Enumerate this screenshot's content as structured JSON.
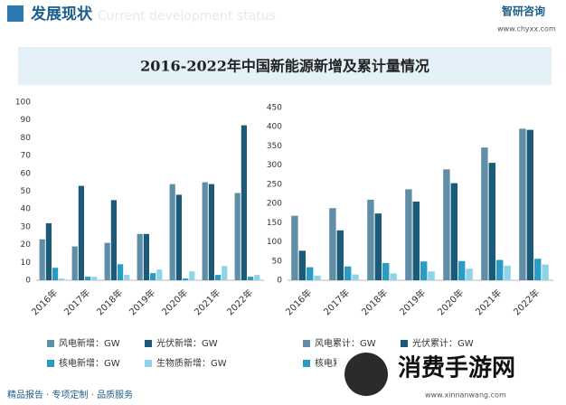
{
  "header": {
    "title": "发展现状",
    "subtitle": "Current development status",
    "logo": "智研咨询",
    "url": "www.chyxx.com"
  },
  "title": "2016-2022年中国新能源新增及累计量情况",
  "footer": "精品报告 · 专项定制 · 品质服务",
  "watermark": {
    "name": "消费手游网",
    "url": "www.xinnanwang.com"
  },
  "chart_data": [
    {
      "type": "bar",
      "categories": [
        "2016年",
        "2017年",
        "2018年",
        "2019年",
        "2020年",
        "2021年",
        "2022年"
      ],
      "ylim": [
        0,
        100
      ],
      "yticks": [
        0,
        10,
        20,
        30,
        40,
        50,
        60,
        70,
        80,
        90,
        100
      ],
      "series": [
        {
          "name": "风电新增：GW",
          "color": "#5f8ea6",
          "values": [
            23,
            19,
            21,
            26,
            54,
            55,
            49
          ]
        },
        {
          "name": "光伏新增：GW",
          "color": "#1b5a78",
          "values": [
            32,
            53,
            45,
            26,
            48,
            54,
            87
          ]
        },
        {
          "name": "核电新增：GW",
          "color": "#2a9cc4",
          "values": [
            7,
            2,
            9,
            4,
            1,
            3,
            2
          ]
        },
        {
          "name": "生物质新增：GW",
          "color": "#8fd3e6",
          "values": [
            1,
            2,
            3,
            6,
            5,
            8,
            3
          ]
        }
      ]
    },
    {
      "type": "bar",
      "categories": [
        "2016年",
        "2017年",
        "2018年",
        "2019年",
        "2020年",
        "2021年",
        "2022年"
      ],
      "ylim": [
        0,
        450
      ],
      "yticks": [
        0,
        50,
        100,
        150,
        200,
        250,
        300,
        350,
        400,
        450
      ],
      "series": [
        {
          "name": "风电累计：GW",
          "color": "#5f8ea6",
          "values": [
            168,
            188,
            210,
            237,
            289,
            346,
            395
          ]
        },
        {
          "name": "光伏累计：GW",
          "color": "#1b5a78",
          "values": [
            77,
            130,
            174,
            205,
            253,
            306,
            392
          ]
        },
        {
          "name": "核电累计：GW",
          "color": "#2a9cc4",
          "values": [
            34,
            36,
            45,
            49,
            50,
            53,
            56
          ]
        },
        {
          "color": "#8fd3e6",
          "values": [
            12,
            15,
            18,
            23,
            30,
            38,
            41
          ]
        }
      ]
    }
  ]
}
